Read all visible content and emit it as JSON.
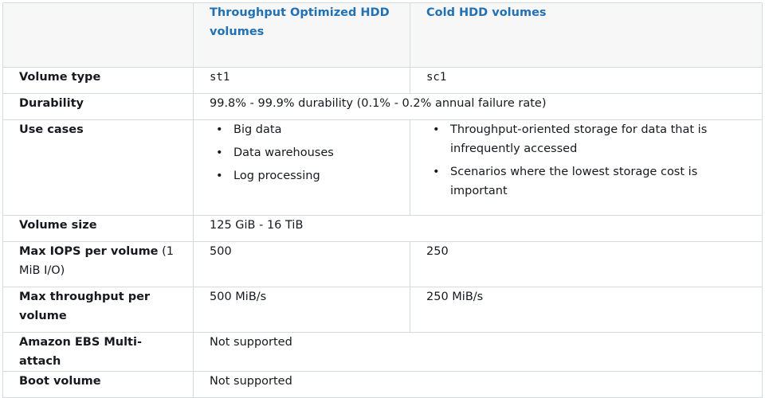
{
  "header": {
    "corner": "",
    "col1": "Throughput Optimized HDD volumes",
    "col2": "Cold HDD volumes"
  },
  "rows": {
    "volume_type": {
      "label": "Volume type",
      "col1": "st1",
      "col2": "sc1"
    },
    "durability": {
      "label": "Durability",
      "value": "99.8% - 99.9% durability (0.1% - 0.2% annual failure rate)"
    },
    "use_cases": {
      "label": "Use cases",
      "col1": [
        "Big data",
        "Data warehouses",
        "Log processing"
      ],
      "col2": [
        "Throughput-oriented storage for data that is infrequently accessed",
        "Scenarios where the lowest storage cost is important"
      ]
    },
    "volume_size": {
      "label": "Volume size",
      "value": "125 GiB - 16 TiB"
    },
    "max_iops": {
      "label_bold": "Max IOPS per volume",
      "label_normal": " (1 MiB I/O)",
      "col1": "500",
      "col2": "250"
    },
    "max_throughput": {
      "label": "Max throughput per volume",
      "col1": "500 MiB/s",
      "col2": "250 MiB/s"
    },
    "multi_attach": {
      "label": "Amazon EBS Multi-attach",
      "value": "Not supported"
    },
    "boot_volume": {
      "label": "Boot volume",
      "value": "Not supported"
    }
  },
  "bullet_glyph": "•"
}
